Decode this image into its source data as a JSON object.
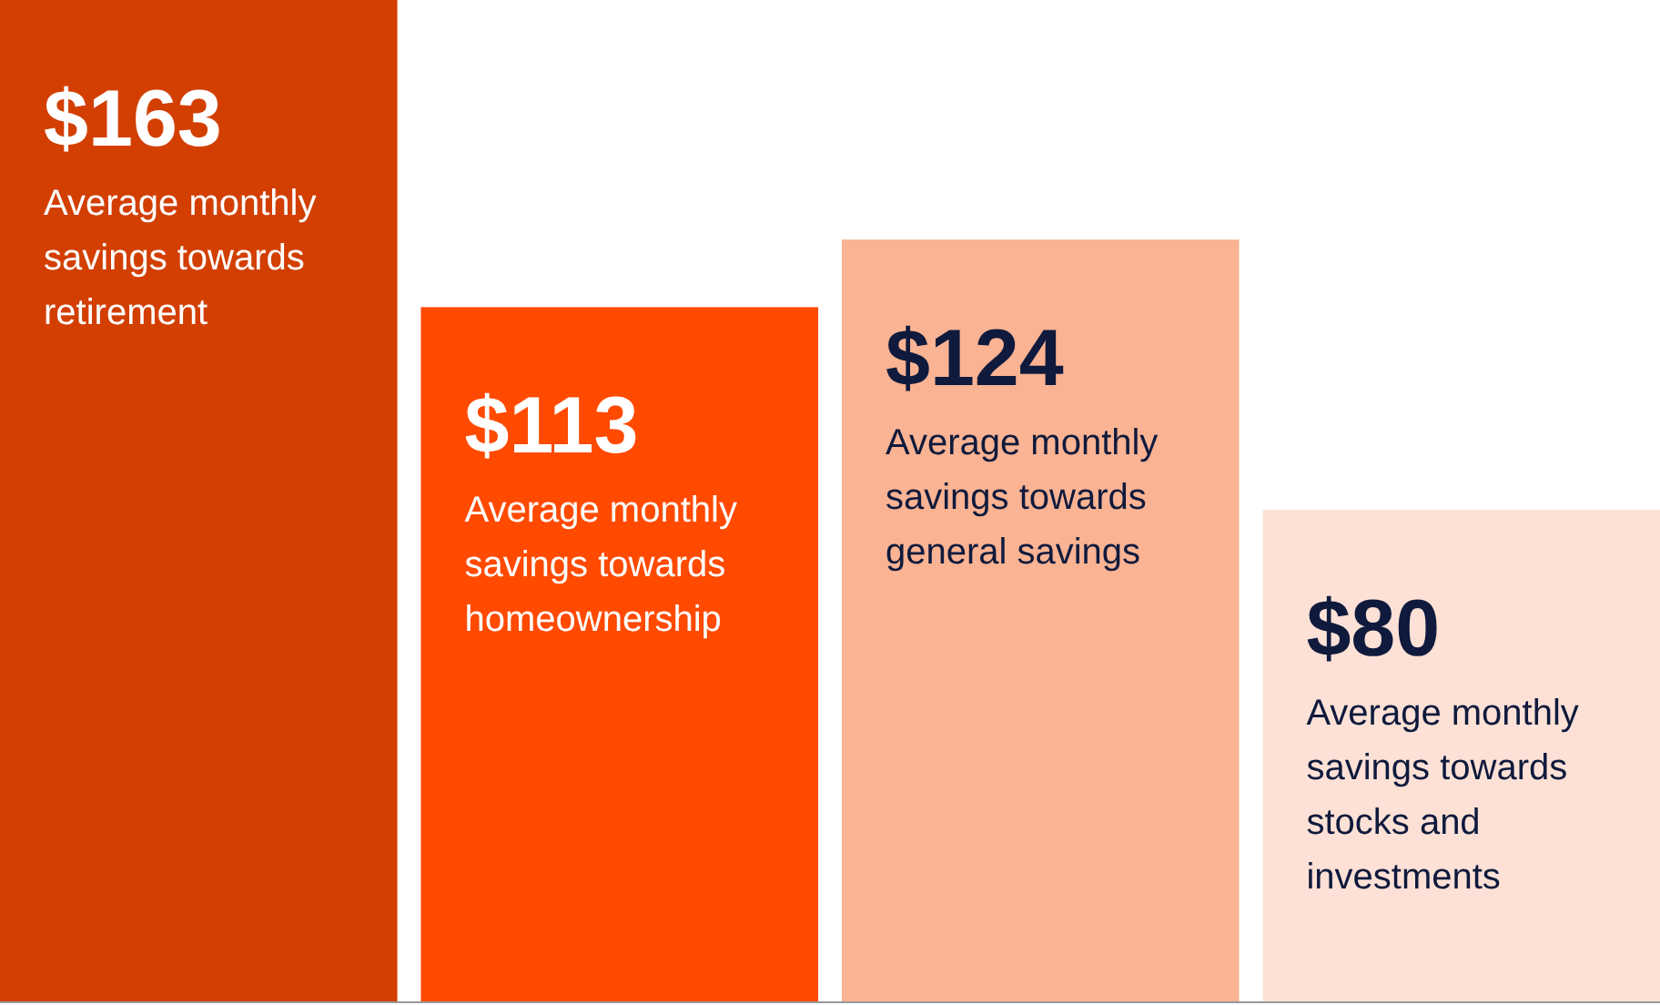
{
  "chart_data": {
    "type": "bar",
    "categories": [
      "Average monthly savings towards retirement",
      "Average monthly savings towards homeownership",
      "Average monthly savings towards general savings",
      "Average monthly savings towards stocks and investments"
    ],
    "values": [
      163,
      113,
      124,
      80
    ],
    "value_labels": [
      "$163",
      "$113",
      "$124",
      "$80"
    ],
    "colors": [
      "#d23f00",
      "#ff4a00",
      "#fab393",
      "#fde1d6"
    ]
  }
}
